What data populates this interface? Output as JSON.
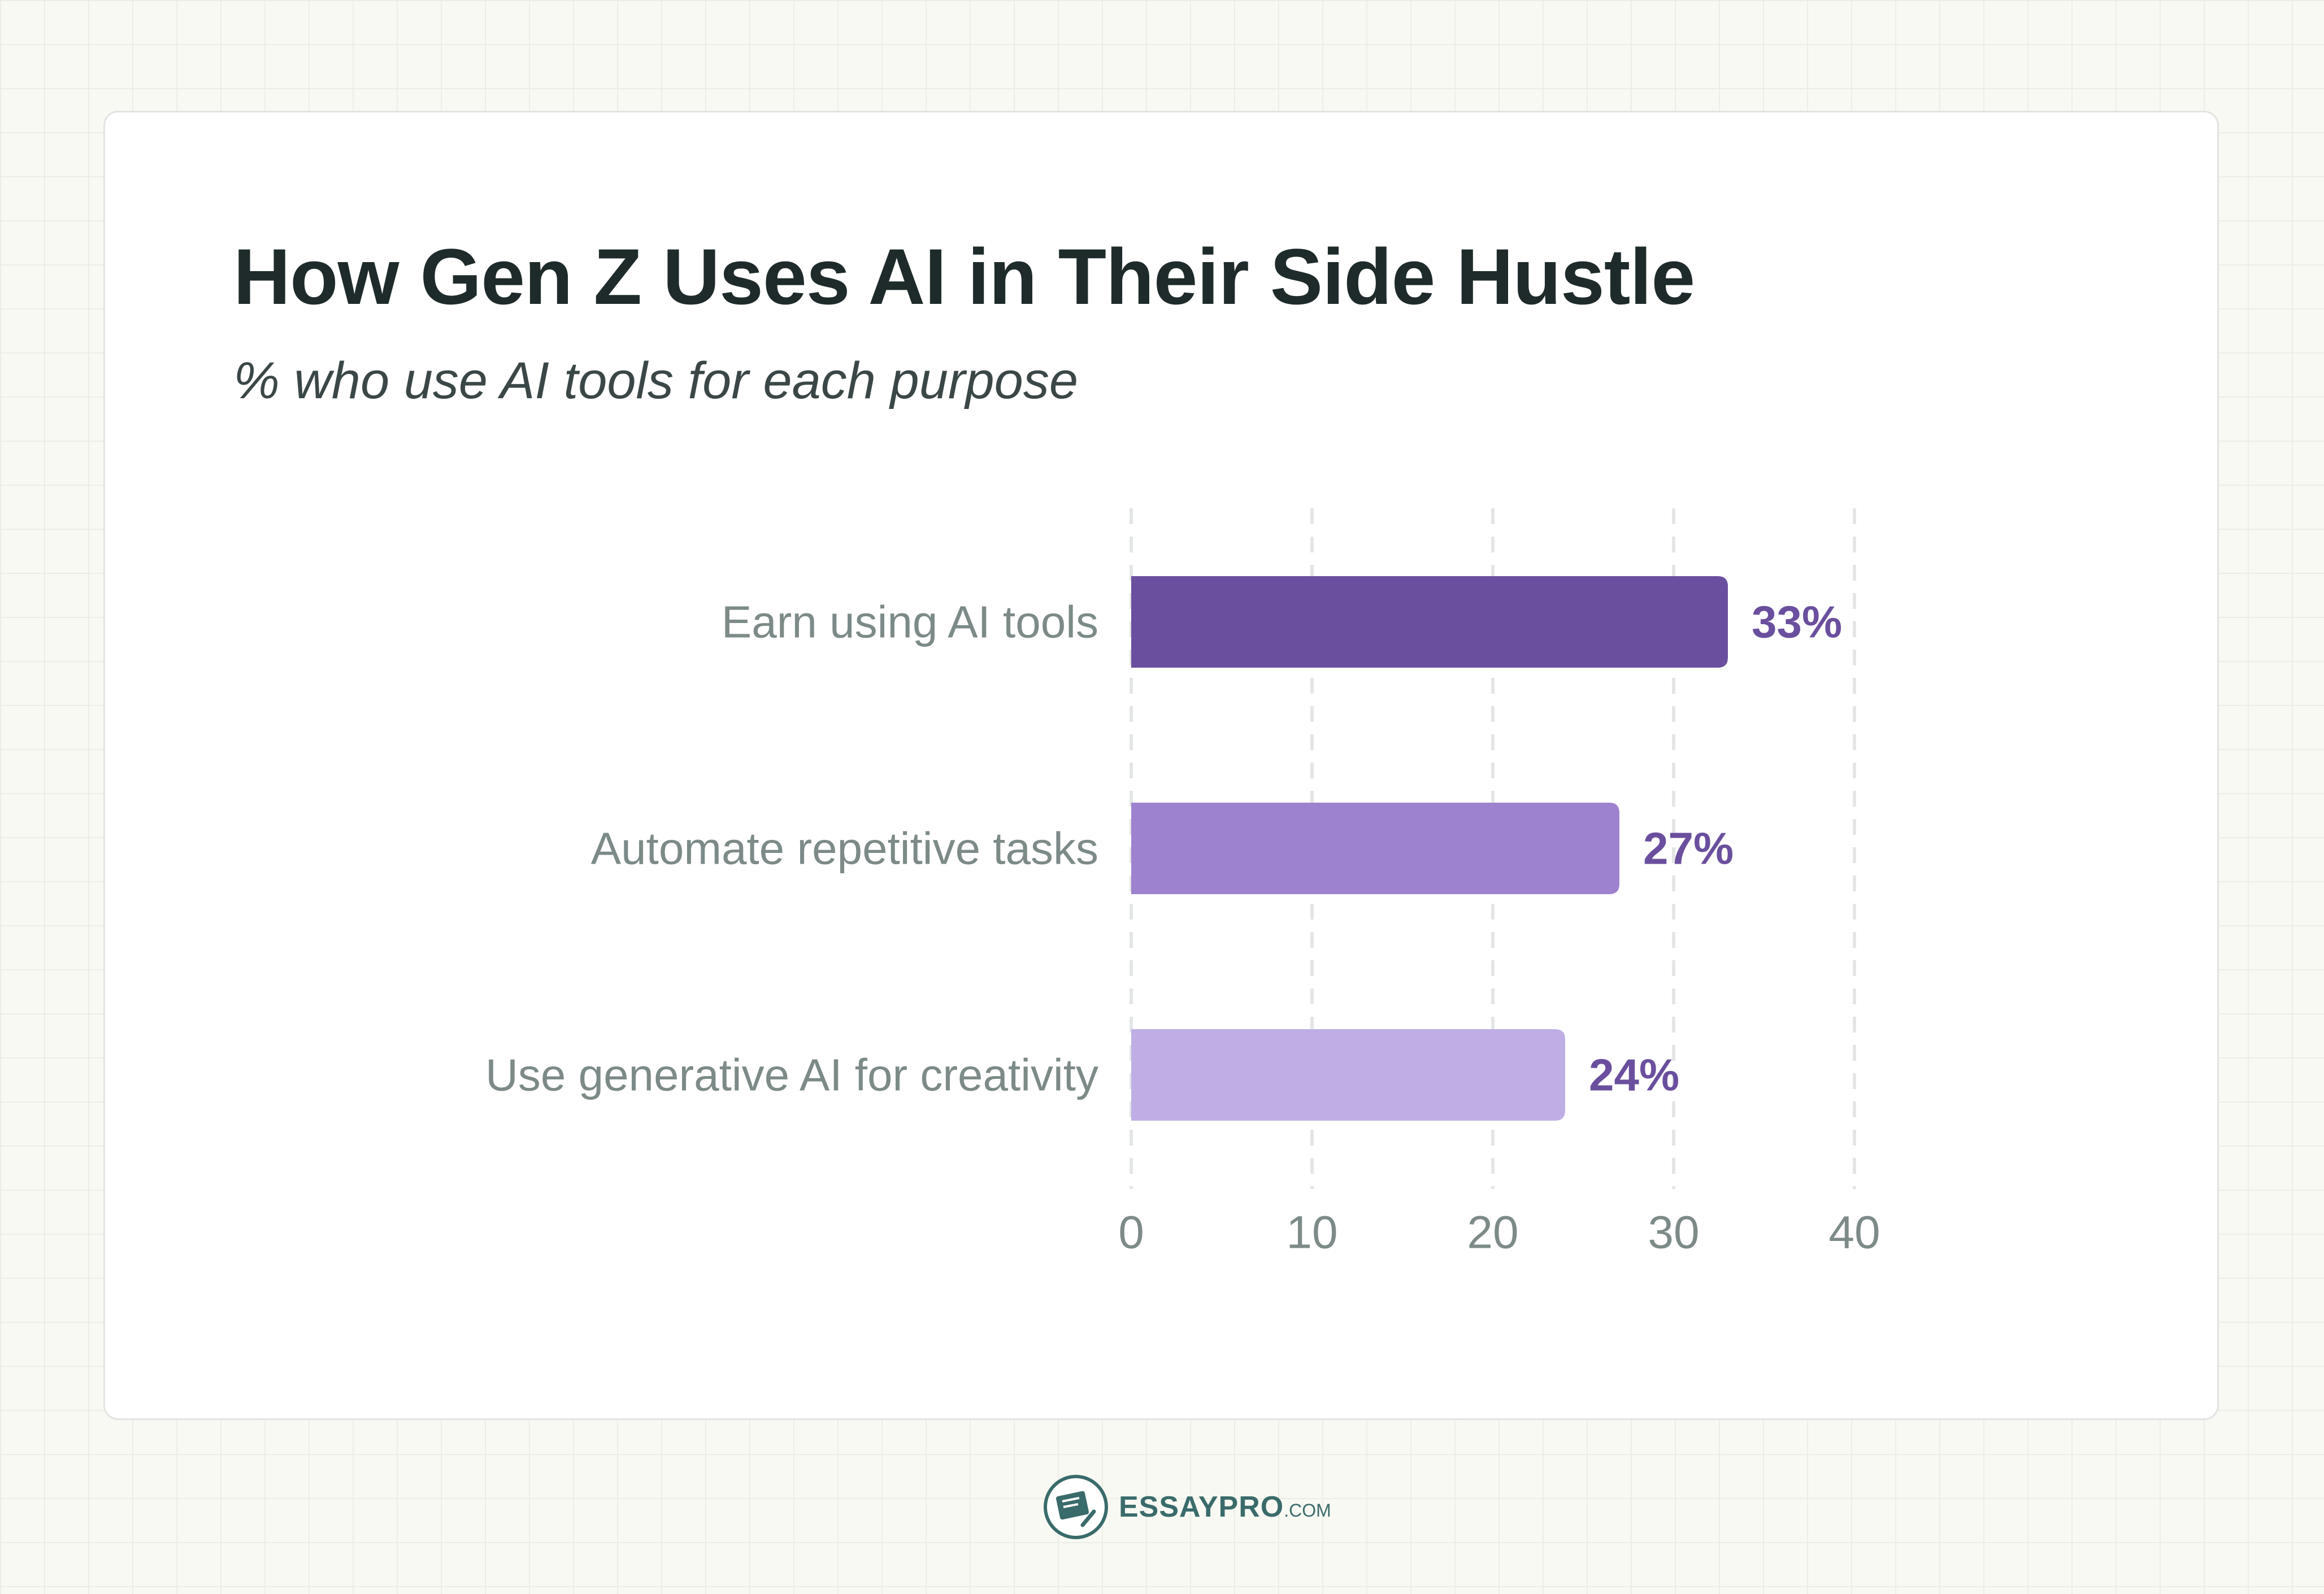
{
  "chart_data": {
    "type": "bar",
    "orientation": "horizontal",
    "title": "How Gen Z Uses AI in Their Side Hustle",
    "subtitle": "% who use AI tools for each purpose",
    "categories": [
      "Earn using AI tools",
      "Automate repetitive tasks",
      "Use generative AI for creativity"
    ],
    "values": [
      33,
      27,
      24
    ],
    "value_labels": [
      "33%",
      "27%",
      "24%"
    ],
    "bar_colors": [
      "#6a4f9e",
      "#9d82cf",
      "#bfaee5"
    ],
    "xlim": [
      0,
      40
    ],
    "xticks": [
      0,
      10,
      20,
      30,
      40
    ],
    "xtick_labels": [
      "0",
      "10",
      "20",
      "30",
      "40"
    ],
    "grid": "vertical dashed",
    "legend": "none"
  },
  "branding": {
    "name": "ESSAYPRO",
    "suffix": ".COM"
  }
}
